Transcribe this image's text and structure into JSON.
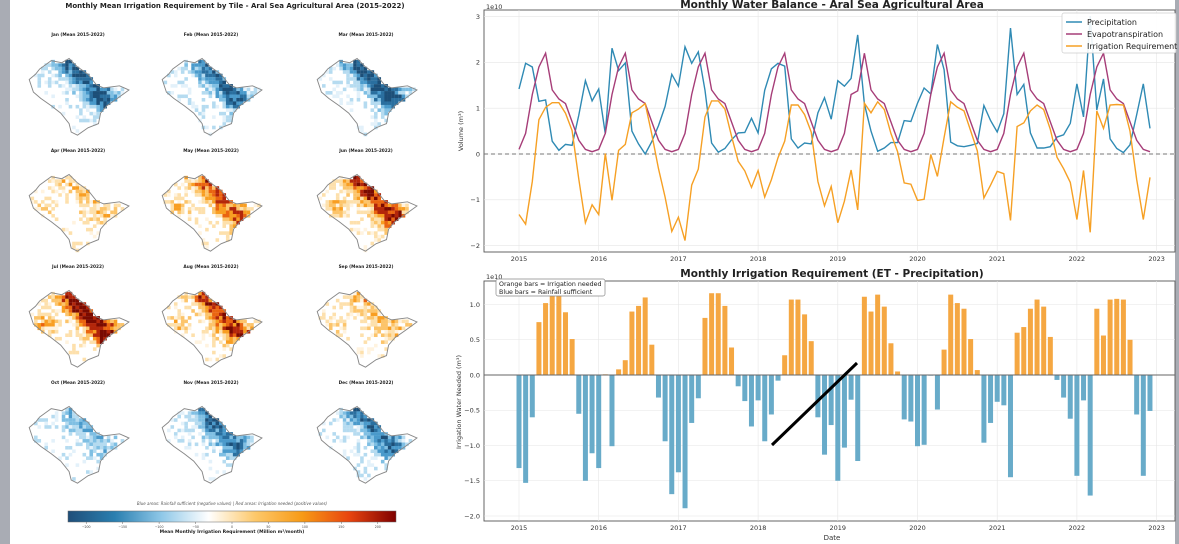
{
  "left_figure": {
    "title": "Monthly Mean Irrigation Requirement by Tile - Aral Sea Agricultural Area (2015-2022)",
    "panels": [
      {
        "title": "Jan (Mean 2015-2022)",
        "tone": "blue",
        "level": 0.8
      },
      {
        "title": "Feb (Mean 2015-2022)",
        "tone": "blue",
        "level": 0.7
      },
      {
        "title": "Mar (Mean 2015-2022)",
        "tone": "blue",
        "level": 0.9
      },
      {
        "title": "Apr (Mean 2015-2022)",
        "tone": "orange",
        "level": 0.3
      },
      {
        "title": "May (Mean 2015-2022)",
        "tone": "orange",
        "level": 0.6
      },
      {
        "title": "Jun (Mean 2015-2022)",
        "tone": "orange",
        "level": 0.8
      },
      {
        "title": "Jul (Mean 2015-2022)",
        "tone": "orange",
        "level": 0.9
      },
      {
        "title": "Aug (Mean 2015-2022)",
        "tone": "orange",
        "level": 0.7
      },
      {
        "title": "Sep (Mean 2015-2022)",
        "tone": "orange",
        "level": 0.35
      },
      {
        "title": "Oct (Mean 2015-2022)",
        "tone": "blue",
        "level": 0.35
      },
      {
        "title": "Nov (Mean 2015-2022)",
        "tone": "blue",
        "level": 0.7
      },
      {
        "title": "Dec (Mean 2015-2022)",
        "tone": "blue",
        "level": 0.7
      }
    ],
    "note": "Blue areas: Rainfall sufficient (negative values) | Red areas: Irrigation needed (positive values)",
    "colorbar": {
      "label": "Mean Monthly Irrigation Requirement (Million m³/month)",
      "ticks": [
        "−200",
        "−150",
        "−100",
        "−50",
        "0",
        "50",
        "100",
        "150",
        "200"
      ],
      "range": [
        -225,
        225
      ],
      "colors": [
        "#1f4e79",
        "#2a7fb0",
        "#8fc8e8",
        "#ffffff",
        "#fdc86a",
        "#f79a16",
        "#e8450f",
        "#7f0000"
      ]
    }
  },
  "chart_data": [
    {
      "type": "line",
      "title": "Monthly Water Balance - Aral Sea Agricultural Area",
      "ylabel": "Volume (m³)",
      "y_scale_label": "1e10",
      "xlabel": "",
      "x_ticks": [
        "2015",
        "2016",
        "2017",
        "2018",
        "2019",
        "2020",
        "2021",
        "2022",
        "2023"
      ],
      "y_ticks": [
        "−2",
        "−1",
        "0",
        "1",
        "2",
        "3"
      ],
      "xlim": [
        2014.75,
        2023.25
      ],
      "ylim": [
        -2.2,
        3.15
      ],
      "grid": true,
      "zero_line": "dashed",
      "legend_position": "top-right",
      "x_start": "2015-01",
      "x_step": "month",
      "series": [
        {
          "name": "Precipitation",
          "color": "#2f8ab4",
          "values": [
            1.42,
            1.98,
            1.9,
            1.15,
            1.18,
            0.28,
            0.08,
            0.21,
            0.19,
            0.85,
            1.6,
            1.16,
            1.42,
            0.44,
            2.31,
            1.82,
            1.99,
            0.5,
            0.22,
            0.0,
            0.27,
            0.62,
            1.04,
            1.74,
            1.48,
            2.34,
            1.98,
            2.23,
            1.39,
            0.24,
            0.04,
            0.12,
            0.31,
            0.46,
            0.47,
            0.78,
            0.46,
            1.39,
            1.86,
            1.98,
            1.92,
            0.33,
            0.13,
            0.24,
            0.22,
            0.9,
            1.23,
            0.76,
            1.6,
            1.48,
            1.65,
            2.6,
            1.09,
            0.5,
            0.06,
            0.13,
            0.25,
            0.25,
            0.73,
            0.71,
            1.11,
            1.44,
            1.31,
            2.39,
            1.84,
            0.26,
            0.18,
            0.16,
            0.19,
            0.23,
            1.06,
            0.73,
            0.48,
            0.88,
            2.75,
            1.3,
            1.52,
            0.46,
            0.13,
            0.13,
            0.16,
            0.37,
            0.42,
            0.67,
            1.53,
            0.81,
            3.01,
            0.96,
            1.64,
            0.33,
            0.12,
            0.03,
            0.2,
            0.86,
            1.53,
            0.56
          ]
        },
        {
          "name": "Evapotranspiration",
          "color": "#a63d78",
          "values": [
            0.1,
            0.45,
            1.3,
            1.9,
            2.2,
            1.4,
            1.2,
            1.1,
            0.7,
            0.3,
            0.1,
            0.05,
            0.1,
            0.45,
            1.3,
            1.9,
            2.2,
            1.4,
            1.2,
            1.1,
            0.7,
            0.3,
            0.1,
            0.05,
            0.1,
            0.45,
            1.3,
            1.9,
            2.2,
            1.4,
            1.2,
            1.1,
            0.7,
            0.3,
            0.1,
            0.05,
            0.1,
            0.45,
            1.3,
            1.9,
            2.2,
            1.4,
            1.2,
            1.1,
            0.7,
            0.3,
            0.1,
            0.05,
            0.1,
            0.45,
            1.3,
            1.38,
            2.2,
            1.4,
            1.2,
            1.1,
            0.7,
            0.3,
            0.1,
            0.05,
            0.1,
            0.45,
            1.3,
            1.9,
            2.2,
            1.4,
            1.2,
            1.1,
            0.7,
            0.3,
            0.1,
            0.05,
            0.1,
            0.45,
            1.3,
            1.9,
            2.2,
            1.4,
            1.2,
            1.1,
            0.7,
            0.3,
            0.1,
            0.05,
            0.1,
            0.45,
            1.3,
            1.9,
            2.2,
            1.4,
            1.2,
            1.1,
            0.7,
            0.3,
            0.1,
            0.05
          ]
        },
        {
          "name": "Irrigation Requirement",
          "color": "#f6a024",
          "values": [
            -1.32,
            -1.53,
            -0.6,
            0.75,
            1.02,
            1.12,
            1.12,
            0.89,
            0.51,
            -0.55,
            -1.5,
            -1.11,
            -1.32,
            0.01,
            -1.01,
            0.08,
            0.21,
            0.9,
            0.98,
            1.1,
            0.43,
            -0.32,
            -0.94,
            -1.69,
            -1.38,
            -1.89,
            -0.68,
            -0.33,
            0.81,
            1.16,
            1.16,
            0.98,
            0.39,
            -0.16,
            -0.37,
            -0.73,
            -0.36,
            -0.94,
            -0.56,
            -0.08,
            0.28,
            1.07,
            1.07,
            0.86,
            0.48,
            -0.6,
            -1.13,
            -0.71,
            -1.5,
            -1.03,
            -0.35,
            -1.22,
            1.11,
            0.9,
            1.14,
            0.97,
            0.45,
            0.05,
            -0.63,
            -0.66,
            -1.01,
            -0.99,
            -0.01,
            -0.49,
            0.36,
            1.14,
            1.02,
            0.94,
            0.51,
            0.07,
            -0.96,
            -0.68,
            -0.38,
            -0.43,
            -1.45,
            0.6,
            0.68,
            0.94,
            1.07,
            0.97,
            0.54,
            -0.07,
            -0.32,
            -0.62,
            -1.43,
            -0.36,
            -1.71,
            0.94,
            0.56,
            1.07,
            1.08,
            1.07,
            0.5,
            -0.56,
            -1.43,
            -0.51
          ]
        }
      ]
    },
    {
      "type": "bar",
      "title": "Monthly Irrigation Requirement (ET - Precipitation)",
      "ylabel": "Irrigation Water Needed (m³)",
      "y_scale_label": "1e10",
      "xlabel": "Date",
      "x_ticks": [
        "2015",
        "2016",
        "2017",
        "2018",
        "2019",
        "2020",
        "2021",
        "2022",
        "2023"
      ],
      "y_ticks": [
        "−2.0",
        "−1.5",
        "−1.0",
        "−0.5",
        "0.0",
        "0.5",
        "1.0"
      ],
      "xlim": [
        2014.75,
        2023.25
      ],
      "ylim": [
        -2.1,
        1.35
      ],
      "grid": true,
      "annotation": [
        "Orange bars = Irrigation needed",
        "Blue bars = Rainfall sufficient"
      ],
      "positive_color": "#f5a742",
      "negative_color": "#68abc9",
      "values_source": "Irrigation Requirement"
    }
  ]
}
